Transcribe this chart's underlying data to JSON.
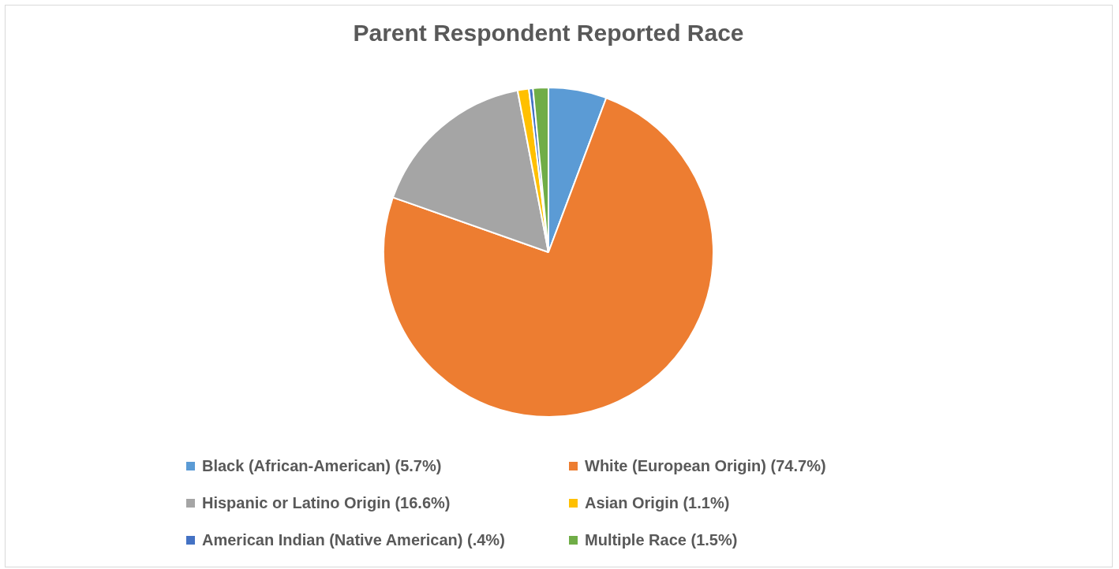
{
  "chart_data": {
    "type": "pie",
    "title": "Parent Respondent Reported Race",
    "categories": [
      "Black (African-American) (5.7%)",
      "White (European Origin) (74.7%)",
      "Hispanic or Latino Origin (16.6%)",
      "Asian Origin (1.1%)",
      "American Indian (Native American) (.4%)",
      "Multiple Race (1.5%)"
    ],
    "values": [
      5.7,
      74.7,
      16.6,
      1.1,
      0.4,
      1.5
    ],
    "colors": [
      "#5b9bd5",
      "#ed7d31",
      "#a5a5a5",
      "#ffc000",
      "#4472c4",
      "#70ad47"
    ],
    "legend": "bottom"
  }
}
